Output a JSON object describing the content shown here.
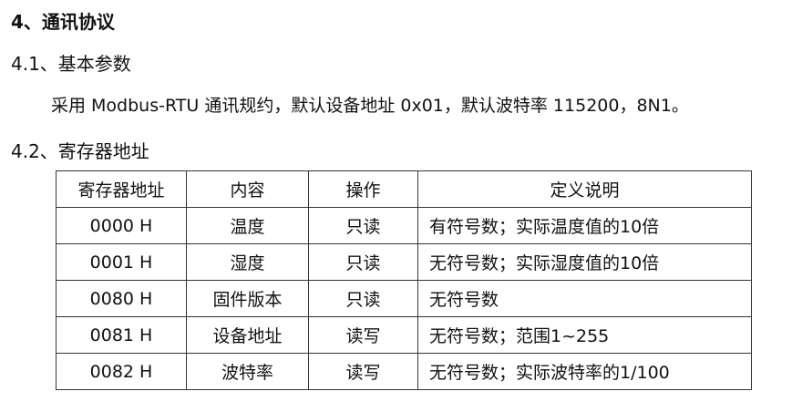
{
  "section_title": "4、通讯协议",
  "sub1_title": "4.1、基本参数",
  "sub1_text": "采用 Modbus-RTU 通讯规约，默认设备地址 0x01，默认波特率 115200，8N1。",
  "sub2_title": "4.2、寄存器地址",
  "table": {
    "headers": [
      "寄存器地址",
      "内容",
      "操作",
      "定义说明"
    ],
    "rows": [
      [
        "0000 H",
        "温度",
        "只读",
        "有符号数；实际温度值的10倍"
      ],
      [
        "0001 H",
        "湿度",
        "只读",
        "无符号数；实际湿度值的10倍"
      ],
      [
        "0080 H",
        "固件版本",
        "只读",
        "无符号数"
      ],
      [
        "0081 H",
        "设备地址",
        "读写",
        "无符号数；范围1~255"
      ],
      [
        "0082 H",
        "波特率",
        "读写",
        "无符号数；实际波特率的1/100"
      ]
    ]
  }
}
